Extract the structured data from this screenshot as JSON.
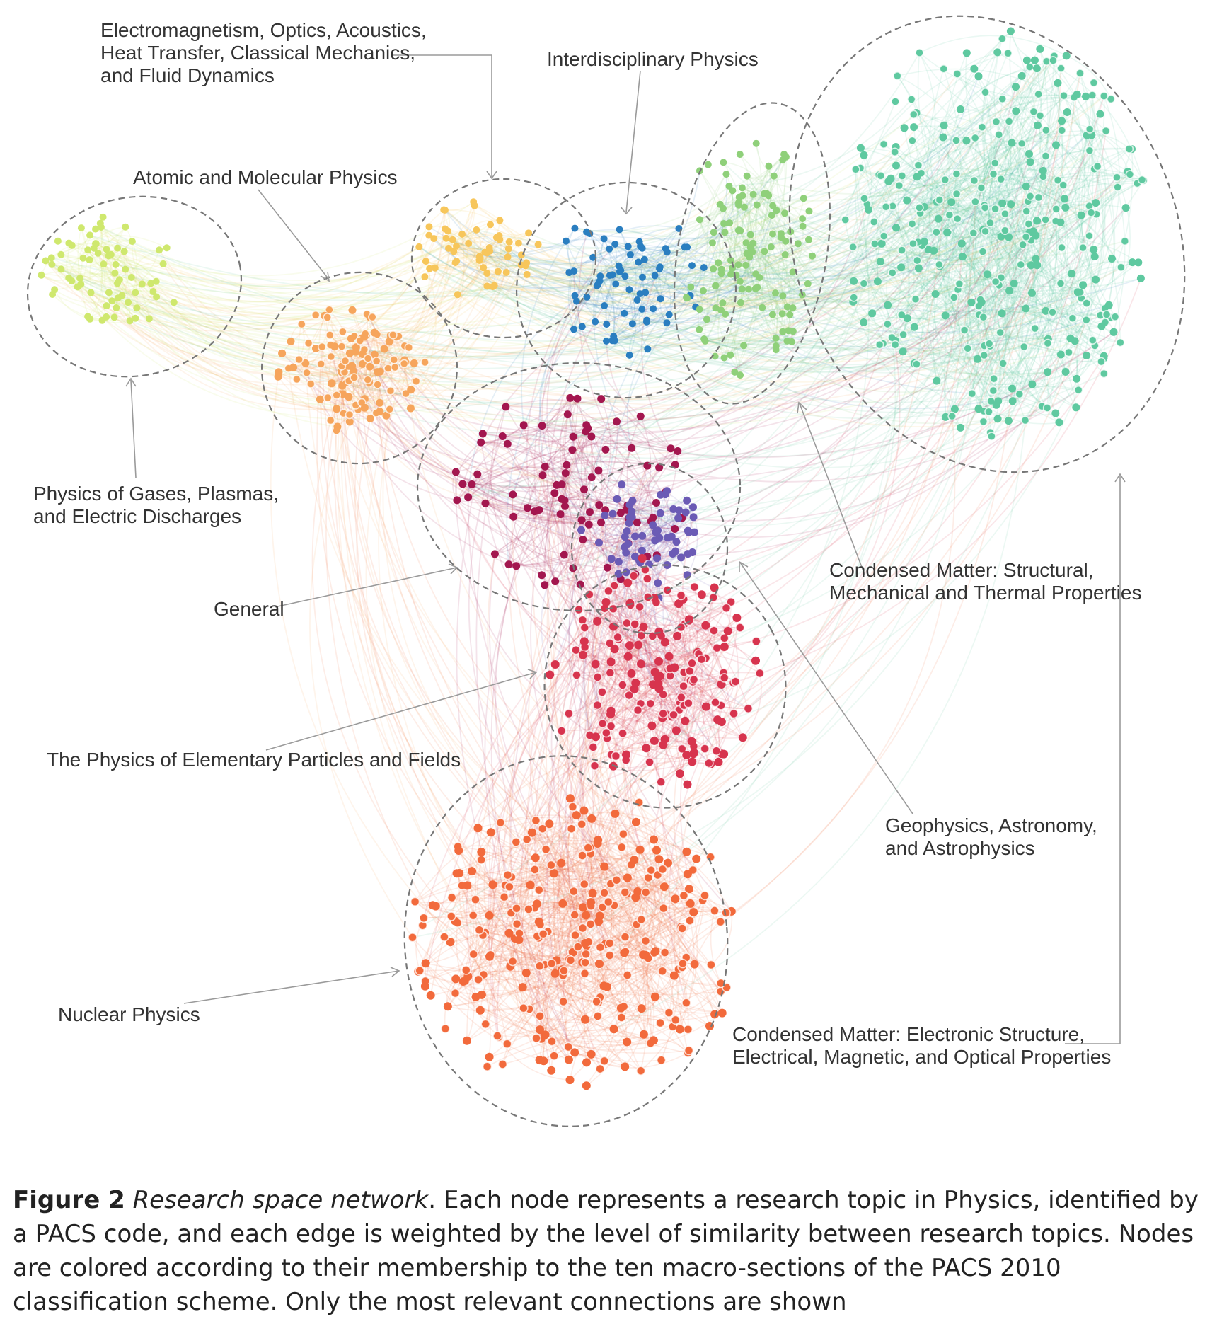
{
  "clusters": [
    {
      "key": "gases",
      "name": "Physics of Gases, Plasmas, and Electric Discharges",
      "color": "#cfe86e"
    },
    {
      "key": "atomic",
      "name": "Atomic and Molecular Physics",
      "color": "#f6a55c"
    },
    {
      "key": "classical",
      "name": "Electromagnetism, Optics, Acoustics, Heat Transfer, Classical Mechanics, and Fluid Dynamics",
      "color": "#f7c65b"
    },
    {
      "key": "interdisciplinary",
      "name": "Interdisciplinary Physics",
      "color": "#2a7ec0"
    },
    {
      "key": "cm_structural",
      "name": "Condensed Matter: Structural, Mechanical and Thermal Properties",
      "color": "#8fd07a"
    },
    {
      "key": "cm_electronic",
      "name": "Condensed Matter: Electronic Structure, Electrical, Magnetic, and Optical Properties",
      "color": "#5fc9a0"
    },
    {
      "key": "general",
      "name": "General",
      "color": "#a3174f"
    },
    {
      "key": "geophysics",
      "name": "Geophysics, Astronomy, and Astrophysics",
      "color": "#6b5bb5"
    },
    {
      "key": "particles",
      "name": "The Physics of Elementary Particles and Fields",
      "color": "#d7344e"
    },
    {
      "key": "nuclear",
      "name": "Nuclear Physics",
      "color": "#f26a3c"
    }
  ],
  "labels": {
    "classical": [
      "Electromagnetism, Optics, Acoustics,",
      "Heat Transfer, Classical Mechanics,",
      "and Fluid Dynamics"
    ],
    "interdisciplinary": [
      "Interdisciplinary Physics"
    ],
    "atomic": [
      "Atomic and Molecular Physics"
    ],
    "gases": [
      "Physics of Gases, Plasmas,",
      "and Electric Discharges"
    ],
    "general": [
      "General"
    ],
    "particles": [
      "The Physics of Elementary Particles and Fields"
    ],
    "nuclear": [
      "Nuclear Physics"
    ],
    "cm_structural": [
      "Condensed Matter: Structural,",
      "Mechanical and Thermal Properties"
    ],
    "geophysics": [
      "Geophysics, Astronomy,",
      "and Astrophysics"
    ],
    "cm_electronic": [
      "Condensed Matter: Electronic Structure,",
      "Electrical, Magnetic, and Optical Properties"
    ]
  },
  "caption": {
    "figure_number": "Figure 2",
    "title": "Research space network",
    "text": ". Each node represents a research topic in Physics, identified by a PACS code, and each edge is weighted by the level of similarity between research topics. Nodes are colored according to their membership to the ten macro-sections of the PACS 2010 classification scheme. Only the most relevant connections are shown"
  }
}
